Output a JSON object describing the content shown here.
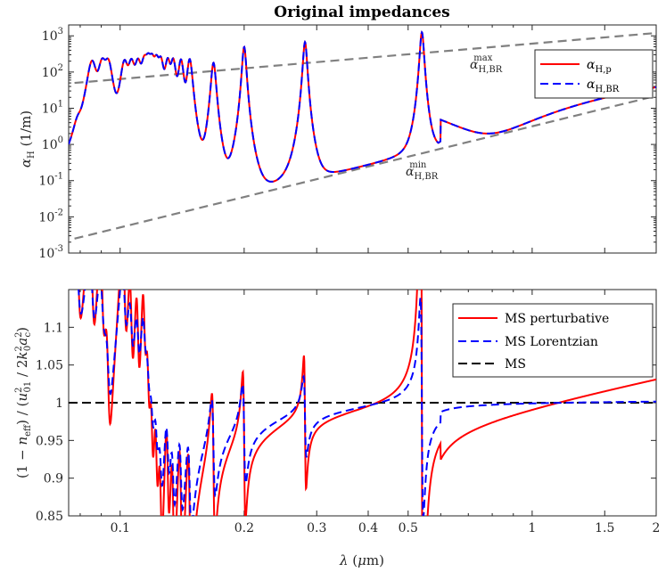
{
  "chart_data": [
    {
      "type": "line",
      "title": "Original impedances",
      "xlabel": "",
      "ylabel": "α_H (1/m)",
      "xscale": "log",
      "yscale": "log",
      "xlim": [
        0.075,
        2.0
      ],
      "ylim": [
        0.001,
        2000
      ],
      "yticks": [
        0.001,
        0.01,
        0.1,
        1,
        10,
        100,
        1000
      ],
      "ytick_labels": [
        {
          "base": "10",
          "exp": "-3"
        },
        {
          "base": "10",
          "exp": "-2"
        },
        {
          "base": "10",
          "exp": "-1"
        },
        {
          "base": "10",
          "exp": "0"
        },
        {
          "base": "10",
          "exp": "1"
        },
        {
          "base": "10",
          "exp": "2"
        },
        {
          "base": "10",
          "exp": "3"
        }
      ],
      "legend_position": "top-right",
      "series": [
        {
          "name": "α_H,p",
          "color": "#ff0000",
          "style": "solid"
        },
        {
          "name": "α_H,BR",
          "color": "#0000ff",
          "style": "dashed"
        }
      ],
      "resonances": [
        {
          "wavelength": 0.079,
          "peak": 3.0
        },
        {
          "wavelength": 0.0855,
          "peak": 220
        },
        {
          "wavelength": 0.0905,
          "peak": 220
        },
        {
          "wavelength": 0.0935,
          "peak": 220
        },
        {
          "wavelength": 0.1025,
          "peak": 220
        },
        {
          "wavelength": 0.1065,
          "peak": 220
        },
        {
          "wavelength": 0.1105,
          "peak": 220
        },
        {
          "wavelength": 0.1145,
          "peak": 230
        },
        {
          "wavelength": 0.117,
          "peak": 240
        },
        {
          "wavelength": 0.1195,
          "peak": 240
        },
        {
          "wavelength": 0.1225,
          "peak": 240
        },
        {
          "wavelength": 0.1255,
          "peak": 240
        },
        {
          "wavelength": 0.1305,
          "peak": 240
        },
        {
          "wavelength": 0.1345,
          "peak": 240
        },
        {
          "wavelength": 0.1405,
          "peak": 240
        },
        {
          "wavelength": 0.1475,
          "peak": 250
        },
        {
          "wavelength": 0.1685,
          "peak": 200
        },
        {
          "wavelength": 0.2,
          "peak": 550
        },
        {
          "wavelength": 0.281,
          "peak": 750
        },
        {
          "wavelength": 0.54,
          "peak": 1400
        }
      ],
      "bounds": [
        {
          "name": "α_H,BR^max",
          "label_main": "α",
          "label_sub": "H,BR",
          "label_sup": "max",
          "points": [
            [
              0.0775,
              50
            ],
            [
              2.0,
              1200
            ]
          ],
          "color": "#808080",
          "style": "dashed"
        },
        {
          "name": "α_H,BR^min",
          "label_main": "α",
          "label_sub": "H,BR",
          "label_sup": "min",
          "points": [
            [
              0.0775,
              0.0025
            ],
            [
              2.0,
              22
            ]
          ],
          "color": "#808080",
          "style": "dashed"
        }
      ]
    },
    {
      "type": "line",
      "title": "",
      "xlabel": "λ (μm)",
      "ylabel": "(1 − n_eff) / (u_01² / 2k_0² a_c²)",
      "xscale": "log",
      "xlim": [
        0.075,
        2.0
      ],
      "ylim": [
        0.85,
        1.15
      ],
      "yticks": [
        0.85,
        0.9,
        0.95,
        1,
        1.05,
        1.1
      ],
      "ytick_labels": [
        "0.85",
        "0.9",
        "0.95",
        "1",
        "1.05",
        "1.1"
      ],
      "xticks": [
        0.1,
        0.2,
        0.3,
        0.4,
        0.5,
        1,
        1.5,
        2
      ],
      "xtick_labels": [
        "0.1",
        "0.2",
        "0.3",
        "0.4",
        "0.5",
        "1",
        "1.5",
        "2"
      ],
      "legend_position": "top-right",
      "series": [
        {
          "name": "MS perturbative",
          "color": "#ff0000",
          "style": "solid"
        },
        {
          "name": "MS Lorentzian",
          "color": "#0000ff",
          "style": "dashed"
        },
        {
          "name": "MS",
          "color": "#000000",
          "style": "dashed",
          "values_constant": 1.0
        }
      ]
    }
  ],
  "annotations": {
    "max_label": {
      "main": "α",
      "sub": "H,BR",
      "sup": "max"
    },
    "min_label": {
      "main": "α",
      "sub": "H,BR",
      "sup": "min"
    }
  }
}
